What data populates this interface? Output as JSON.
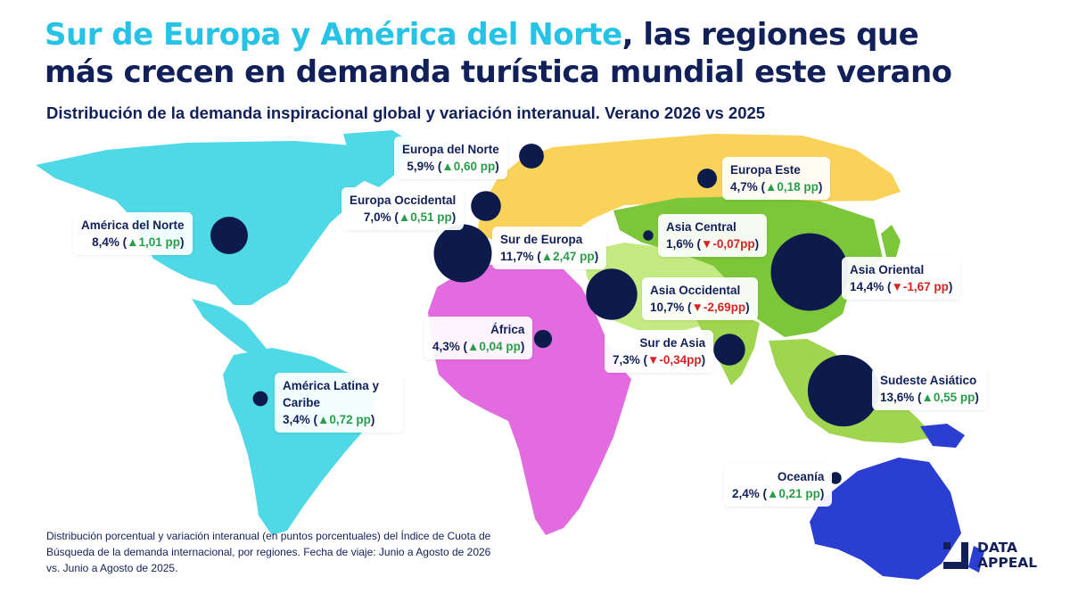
{
  "header": {
    "title_highlight": "Sur de Europa y América del Norte",
    "title_rest_line1": ", las regiones que",
    "title_line2": "más crecen en demanda turística mundial este verano",
    "subtitle": "Distribución de la demanda inspiracional global y variación interanual. Verano 2026 vs 2025"
  },
  "regions": [
    {
      "name": "Europa del Norte",
      "share": "5,9%",
      "change": "▲0,60 pp",
      "direction": "up",
      "share_pct": 5.9,
      "change_pp": 0.6
    },
    {
      "name": "Europa Este",
      "share": "4,7%",
      "change": "▲0,18 pp",
      "direction": "up",
      "share_pct": 4.7,
      "change_pp": 0.18
    },
    {
      "name": "Europa Occidental",
      "share": "7,0%",
      "change": "▲0,51 pp",
      "direction": "up",
      "share_pct": 7.0,
      "change_pp": 0.51
    },
    {
      "name": "América del Norte",
      "share": "8,4%",
      "change": "▲1,01 pp",
      "direction": "up",
      "share_pct": 8.4,
      "change_pp": 1.01
    },
    {
      "name": "Sur de Europa",
      "share": "11,7%",
      "change": "▲2,47 pp",
      "direction": "up",
      "share_pct": 11.7,
      "change_pp": 2.47
    },
    {
      "name": "Asia Central",
      "share": "1,6%",
      "change": "▼-0,07pp",
      "direction": "down",
      "share_pct": 1.6,
      "change_pp": -0.07
    },
    {
      "name": "Asia Oriental",
      "share": "14,4%",
      "change": "▼-1,67 pp",
      "direction": "down",
      "share_pct": 14.4,
      "change_pp": -1.67
    },
    {
      "name": "Asia Occidental",
      "share": "10,7%",
      "change": "▼-2,69pp",
      "direction": "down",
      "share_pct": 10.7,
      "change_pp": -2.69
    },
    {
      "name": "África",
      "share": "4,3%",
      "change": "▲0,04 pp",
      "direction": "up",
      "share_pct": 4.3,
      "change_pp": 0.04
    },
    {
      "name": "Sur de Asia",
      "share": "7,3%",
      "change": "▼-0,34pp",
      "direction": "down",
      "share_pct": 7.3,
      "change_pp": -0.34
    },
    {
      "name": "América Latina y Caribe",
      "share": "3,4%",
      "change": "▲0,72 pp",
      "direction": "up",
      "share_pct": 3.4,
      "change_pp": 0.72
    },
    {
      "name": "Sudeste Asiático",
      "share": "13,6%",
      "change": "▲0,55 pp",
      "direction": "up",
      "share_pct": 13.6,
      "change_pp": 0.55
    },
    {
      "name": "Oceanía",
      "share": "2,4%",
      "change": "▲0,21 pp",
      "direction": "up",
      "share_pct": 2.4,
      "change_pp": 0.21
    }
  ],
  "footnote": "Distribución porcentual y variación interanual (en puntos porcentuales) del Índice de Cuota de Búsqueda de la demanda internacional, por regiones. Fecha de viaje: Junio a Agosto de 2026 vs. Junio a Agosto de 2025.",
  "brand": {
    "line1": "DATA",
    "line2": "APPEAL"
  },
  "colors": {
    "title_highlight": "#26c3e6",
    "title": "#12205a",
    "bubble": "#0d1b4c",
    "increase": "#2a9d4a",
    "decrease": "#d42525",
    "north_america": "#4fd8e6",
    "latin_america": "#4fd8e6",
    "europe": "#f9d25a",
    "africa": "#e36be0",
    "west_asia": "#c4ea82",
    "central_east_asia": "#7cc63a",
    "south_east_asia": "#9fd54f",
    "oceania": "#2a3fd1"
  }
}
